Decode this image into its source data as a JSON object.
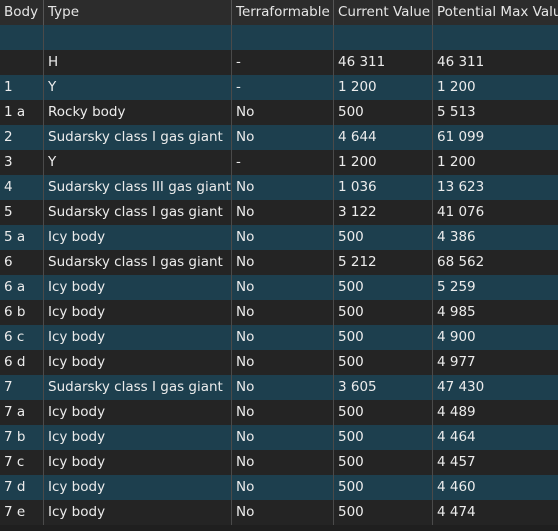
{
  "table": {
    "columns": [
      "Body",
      "Type",
      "Terraformable",
      "Current Value",
      "Potential Max Value"
    ],
    "rows": [
      [
        "",
        "H",
        "-",
        "46 311",
        "46 311"
      ],
      [
        "1",
        "Y",
        "-",
        "1 200",
        "1 200"
      ],
      [
        "1 a",
        "Rocky body",
        "No",
        "500",
        "5 513"
      ],
      [
        "2",
        "Sudarsky class I gas giant",
        "No",
        "4 644",
        "61 099"
      ],
      [
        "3",
        "Y",
        "-",
        "1 200",
        "1 200"
      ],
      [
        "4",
        "Sudarsky class III gas giant",
        "No",
        "1 036",
        "13 623"
      ],
      [
        "5",
        "Sudarsky class I gas giant",
        "No",
        "3 122",
        "41 076"
      ],
      [
        "5 a",
        "Icy body",
        "No",
        "500",
        "4 386"
      ],
      [
        "6",
        "Sudarsky class I gas giant",
        "No",
        "5 212",
        "68 562"
      ],
      [
        "6 a",
        "Icy body",
        "No",
        "500",
        "5 259"
      ],
      [
        "6 b",
        "Icy body",
        "No",
        "500",
        "4 985"
      ],
      [
        "6 c",
        "Icy body",
        "No",
        "500",
        "4 900"
      ],
      [
        "6 d",
        "Icy body",
        "No",
        "500",
        "4 977"
      ],
      [
        "7",
        "Sudarsky class I gas giant",
        "No",
        "3 605",
        "47 430"
      ],
      [
        "7 a",
        "Icy body",
        "No",
        "500",
        "4 489"
      ],
      [
        "7 b",
        "Icy body",
        "No",
        "500",
        "4 464"
      ],
      [
        "7 c",
        "Icy body",
        "No",
        "500",
        "4 457"
      ],
      [
        "7 d",
        "Icy body",
        "No",
        "500",
        "4 460"
      ],
      [
        "7 e",
        "Icy body",
        "No",
        "500",
        "4 474"
      ]
    ]
  },
  "colors": {
    "header_bg": "#2c2c2c",
    "row_dark": "#242424",
    "row_teal": "#1d3f4e",
    "text": "#ececec"
  }
}
